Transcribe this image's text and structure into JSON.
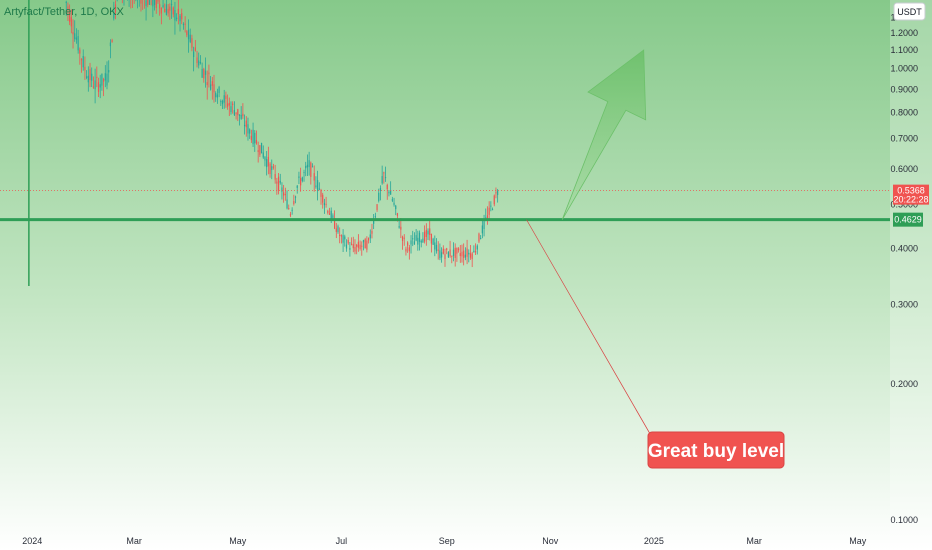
{
  "chart_data": {
    "type": "candlestick",
    "title": "Artyfact/Tether, 1D, OKX",
    "currency": "USDT",
    "y_scale": "log",
    "ylim": [
      0.095,
      1.42
    ],
    "y_ticks": [
      "1.3000",
      "1.2000",
      "1.1000",
      "1.0000",
      "0.9000",
      "0.8000",
      "0.7000",
      "0.6000",
      "0.5000",
      "0.4000",
      "0.3000",
      "0.2000",
      "0.1000"
    ],
    "xlim": [
      "2023-12-13",
      "2025-05-20"
    ],
    "x_ticks": [
      {
        "date": "2024-01-01",
        "label": "2024"
      },
      {
        "date": "2024-03-01",
        "label": "Mar"
      },
      {
        "date": "2024-05-01",
        "label": "May"
      },
      {
        "date": "2024-07-01",
        "label": "Jul"
      },
      {
        "date": "2024-09-01",
        "label": "Sep"
      },
      {
        "date": "2024-11-01",
        "label": "Nov"
      },
      {
        "date": "2025-01-01",
        "label": "2025"
      },
      {
        "date": "2025-03-01",
        "label": "Mar"
      },
      {
        "date": "2025-05-01",
        "label": "May"
      }
    ],
    "price_path": [
      [
        "2024-01-20",
        1.45
      ],
      [
        "2024-02-01",
        1.0
      ],
      [
        "2024-02-07",
        0.92
      ],
      [
        "2024-02-14",
        0.95
      ],
      [
        "2024-02-20",
        1.5
      ],
      [
        "2024-03-05",
        1.45
      ],
      [
        "2024-03-15",
        1.4
      ],
      [
        "2024-03-28",
        1.3
      ],
      [
        "2024-04-10",
        1.0
      ],
      [
        "2024-04-22",
        0.86
      ],
      [
        "2024-05-01",
        0.8
      ],
      [
        "2024-05-15",
        0.66
      ],
      [
        "2024-05-28",
        0.53
      ],
      [
        "2024-06-01",
        0.48
      ],
      [
        "2024-06-05",
        0.55
      ],
      [
        "2024-06-12",
        0.61
      ],
      [
        "2024-06-22",
        0.5
      ],
      [
        "2024-07-01",
        0.42
      ],
      [
        "2024-07-08",
        0.4
      ],
      [
        "2024-07-17",
        0.41
      ],
      [
        "2024-07-26",
        0.58
      ],
      [
        "2024-08-01",
        0.5
      ],
      [
        "2024-08-08",
        0.4
      ],
      [
        "2024-08-15",
        0.42
      ],
      [
        "2024-08-22",
        0.43
      ],
      [
        "2024-08-27",
        0.39
      ],
      [
        "2024-09-06",
        0.39
      ],
      [
        "2024-09-17",
        0.39
      ],
      [
        "2024-09-22",
        0.44
      ],
      [
        "2024-09-28",
        0.5
      ],
      [
        "2024-10-01",
        0.5368
      ]
    ],
    "horizontal_level": 0.4629,
    "last_price": 0.5368,
    "price_tag": {
      "price": "0.5368",
      "countdown": "20:22:28",
      "color": "#f05350"
    },
    "level_tag": {
      "price": "0.4629",
      "color": "#2e9e56"
    },
    "annotations": [
      {
        "type": "arrow-up",
        "from": [
          "2024-11-08",
          0.4629
        ],
        "to": [
          "2024-12-26",
          1.1
        ],
        "color": "#6cc06a"
      },
      {
        "type": "callout",
        "text": "Great buy level",
        "anchor": [
          "2024-10-18",
          0.4629
        ],
        "color": "#f05350"
      }
    ],
    "colors": {
      "up": "#26a69a",
      "down": "#ef5350",
      "level": "#2e9e56"
    }
  }
}
